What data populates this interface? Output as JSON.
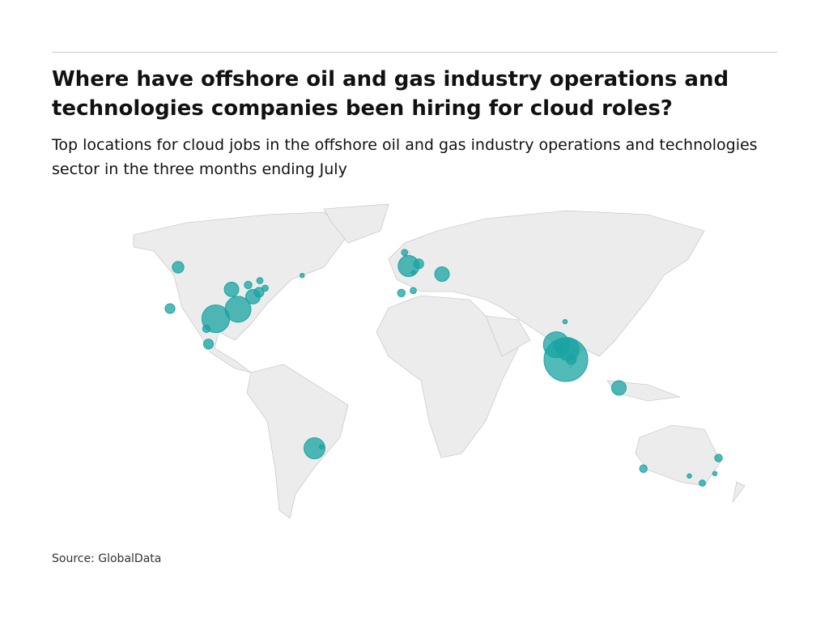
{
  "header": {
    "title": "Where have offshore oil and gas industry operations and technologies companies been hiring for cloud roles?",
    "subtitle": "Top locations for cloud jobs in the offshore oil and gas industry operations and technologies sector in the three months ending July"
  },
  "map": {
    "color": "#1aa3a3",
    "points": [
      {
        "lon": 77.6,
        "lat": 13,
        "value": 100
      },
      {
        "lon": 72.9,
        "lat": 19.1,
        "value": 35
      },
      {
        "lon": 78.5,
        "lat": 17.4,
        "value": 27
      },
      {
        "lon": 80.3,
        "lat": 13.1,
        "value": 5
      },
      {
        "lon": 73.9,
        "lat": 18.5,
        "value": 5
      },
      {
        "lon": 77.2,
        "lat": 28.6,
        "value": 1
      },
      {
        "lon": -95.4,
        "lat": 29.8,
        "value": 40
      },
      {
        "lon": -84.4,
        "lat": 33.7,
        "value": 35
      },
      {
        "lon": -77,
        "lat": 38.9,
        "value": 11
      },
      {
        "lon": -87.6,
        "lat": 41.9,
        "value": 11
      },
      {
        "lon": -74,
        "lat": 40.7,
        "value": 5
      },
      {
        "lon": -71,
        "lat": 42.4,
        "value": 2
      },
      {
        "lon": -114,
        "lat": 51,
        "value": 7
      },
      {
        "lon": -79.4,
        "lat": 43.7,
        "value": 3
      },
      {
        "lon": -73.6,
        "lat": 45.5,
        "value": 2
      },
      {
        "lon": -52.7,
        "lat": 47.6,
        "value": 1
      },
      {
        "lon": -118,
        "lat": 34,
        "value": 5
      },
      {
        "lon": -100,
        "lat": 25.7,
        "value": 3
      },
      {
        "lon": -99,
        "lat": 19.4,
        "value": 5
      },
      {
        "lon": -0.1,
        "lat": 51.5,
        "value": 23
      },
      {
        "lon": -2.1,
        "lat": 57.1,
        "value": 2
      },
      {
        "lon": 4.9,
        "lat": 52.4,
        "value": 5
      },
      {
        "lon": 2.3,
        "lat": 48.9,
        "value": 1
      },
      {
        "lon": -3.7,
        "lat": 40.4,
        "value": 3
      },
      {
        "lon": 2.2,
        "lat": 41.4,
        "value": 2
      },
      {
        "lon": 16.4,
        "lat": 48.2,
        "value": 11
      },
      {
        "lon": 103.8,
        "lat": 1.35,
        "value": 11
      },
      {
        "lon": -46.6,
        "lat": -23.5,
        "value": 23
      },
      {
        "lon": -43.2,
        "lat": -22.9,
        "value": 1
      },
      {
        "lon": 115.9,
        "lat": -31.9,
        "value": 3
      },
      {
        "lon": 145,
        "lat": -37.8,
        "value": 2
      },
      {
        "lon": 138.6,
        "lat": -34.9,
        "value": 1
      },
      {
        "lon": 151.2,
        "lat": -33.9,
        "value": 1
      },
      {
        "lon": 153,
        "lat": -27.5,
        "value": 3
      }
    ]
  },
  "source": "Source: GlobalData"
}
